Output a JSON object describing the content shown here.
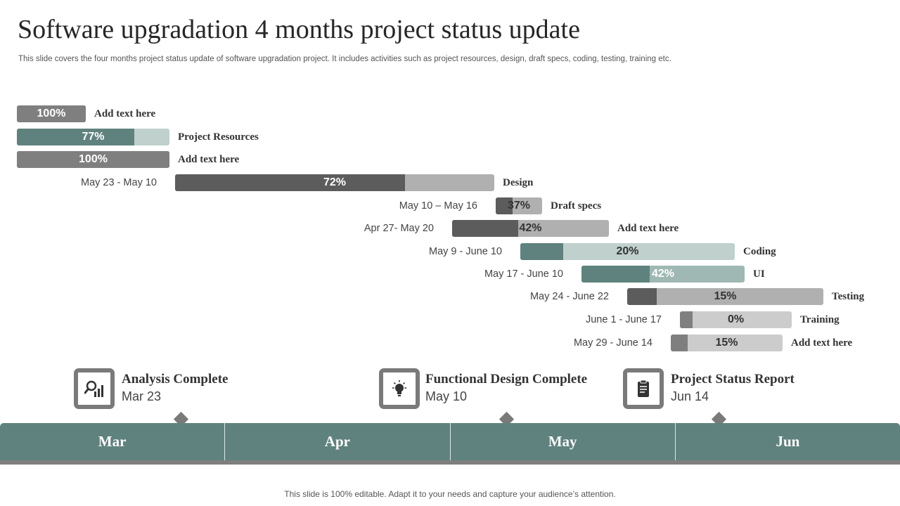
{
  "slide": {
    "title": "Software upgradation 4 months project status update",
    "subtitle": "This slide covers the four months project status update of software upgradation project. It includes activities such as project resources, design, draft specs, coding, testing, training etc.",
    "footer": "This slide is 100% editable. Adapt it to your needs and capture your audience’s attention."
  },
  "colors": {
    "teal_dark": "#5f827e",
    "teal_light": "#bfd0cd",
    "teal_mid": "#9fb8b4",
    "gray_dark": "#5c5c5c",
    "gray_mid": "#7f7f7f",
    "gray_light": "#b0b0b0",
    "gray_pale": "#cccccc"
  },
  "chart_data": {
    "type": "gantt",
    "x_axis": [
      "Mar",
      "Apr",
      "May",
      "Jun"
    ],
    "tasks": [
      {
        "name": "Add text here",
        "dates": "",
        "progress": 100,
        "pct_label": "100%"
      },
      {
        "name": "Project Resources",
        "dates": "",
        "progress": 77,
        "pct_label": "77%"
      },
      {
        "name": "Add text here",
        "dates": "",
        "progress": 100,
        "pct_label": "100%"
      },
      {
        "name": "Design",
        "dates": "May 23 - May 10",
        "progress": 72,
        "pct_label": "72%"
      },
      {
        "name": "Draft specs",
        "dates": "May 10 – May 16",
        "progress": 37,
        "pct_label": "37%"
      },
      {
        "name": "Add text here",
        "dates": "Apr 27- May 20",
        "progress": 42,
        "pct_label": "42%"
      },
      {
        "name": "Coding",
        "dates": "May 9 - June 10",
        "progress": 20,
        "pct_label": "20%"
      },
      {
        "name": "UI",
        "dates": "May 17 - June 10",
        "progress": 42,
        "pct_label": "42%"
      },
      {
        "name": "Testing",
        "dates": "May 24 - June 22",
        "progress": 15,
        "pct_label": "15%"
      },
      {
        "name": "Training",
        "dates": "June 1 - June 17",
        "progress": 0,
        "pct_label": "0%"
      },
      {
        "name": "Add text here",
        "dates": "May 29 - June 14",
        "progress": 15,
        "pct_label": "15%"
      }
    ]
  },
  "milestones": [
    {
      "title": "Analysis Complete",
      "date": "Mar 23",
      "icon": "analysis-chart-icon"
    },
    {
      "title": "Functional Design Complete",
      "date": "May 10",
      "icon": "lightbulb-icon"
    },
    {
      "title": "Project Status Report",
      "date": "Jun 14",
      "icon": "clipboard-icon"
    }
  ]
}
